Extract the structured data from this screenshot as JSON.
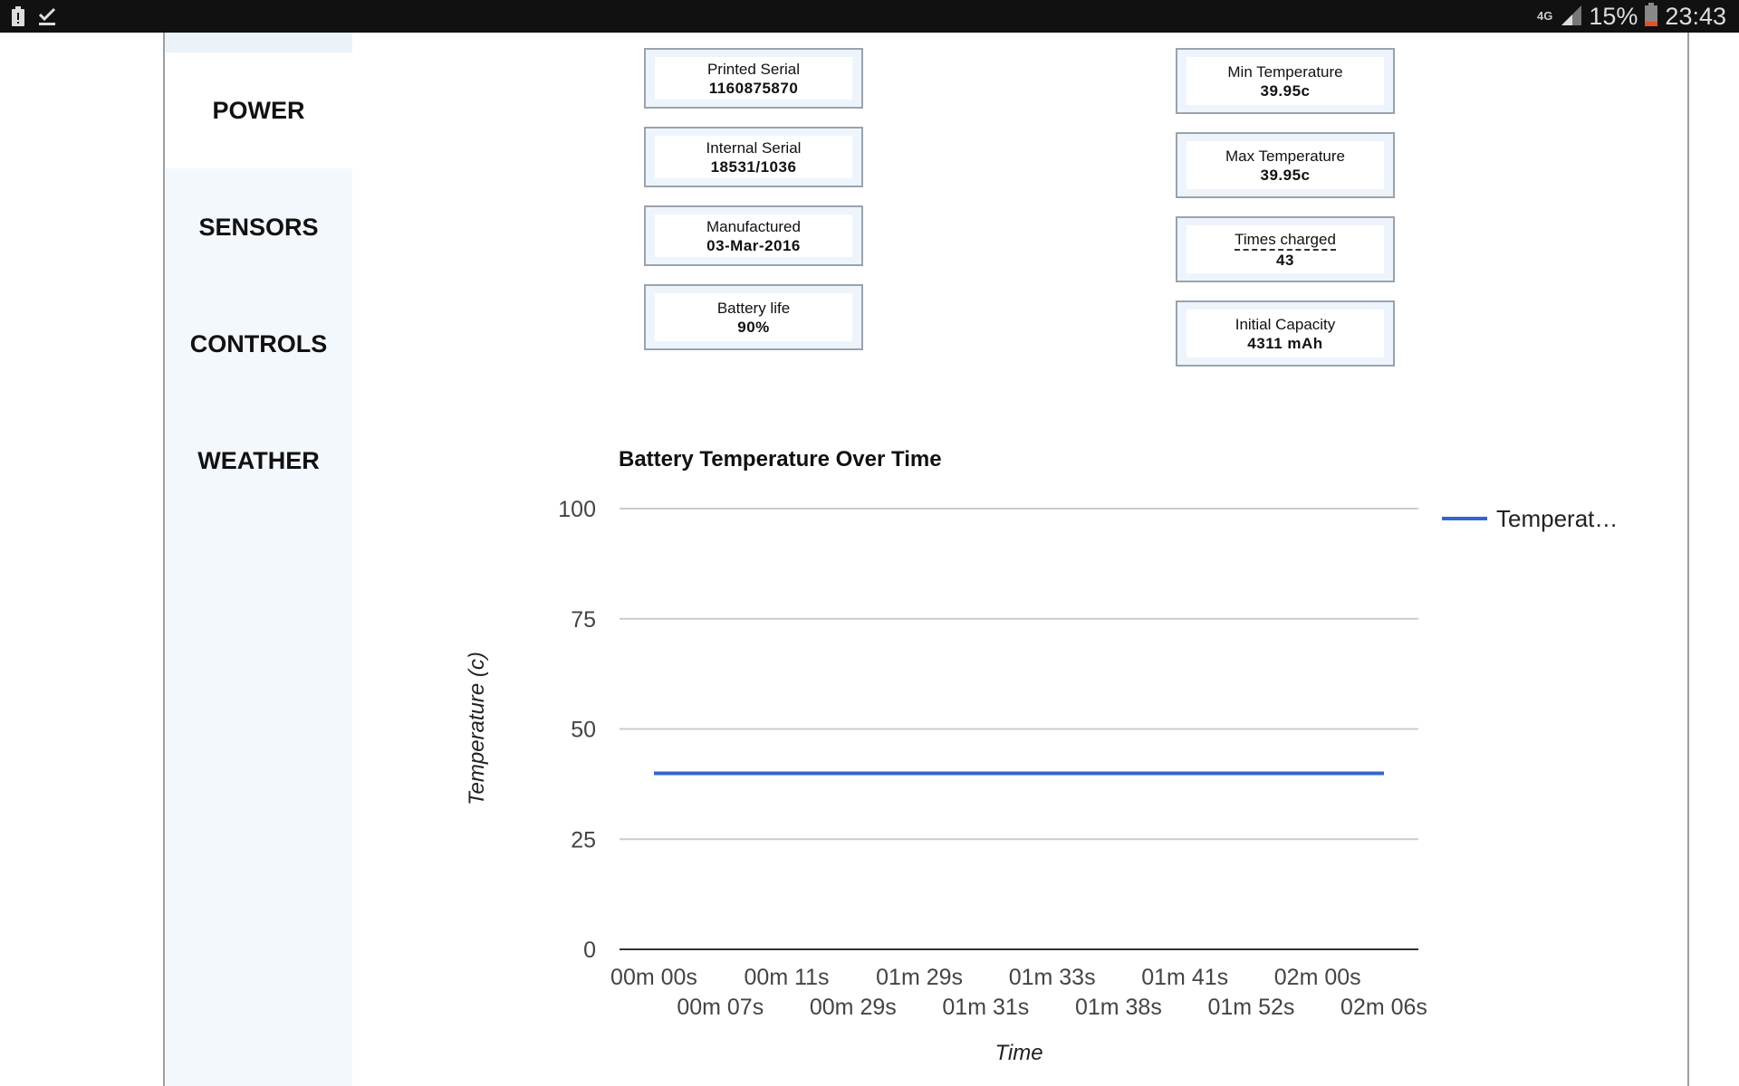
{
  "status_bar": {
    "network": "4G",
    "battery_percent": "15%",
    "time": "23:43",
    "icons": [
      "battery-alert-icon",
      "check-icon",
      "signal-icon",
      "battery-icon"
    ]
  },
  "sidebar": {
    "items": [
      {
        "label": "POWER",
        "active": true
      },
      {
        "label": "SENSORS",
        "active": false
      },
      {
        "label": "CONTROLS",
        "active": false
      },
      {
        "label": "WEATHER",
        "active": false
      }
    ]
  },
  "cards": {
    "left": [
      {
        "label": "Printed Serial",
        "value": "1160875870"
      },
      {
        "label": "Internal Serial",
        "value": "18531/1036"
      },
      {
        "label": "Manufactured",
        "value": "03-Mar-2016"
      },
      {
        "label": "Battery life",
        "value": "90%"
      }
    ],
    "right": [
      {
        "label": "Min Temperature",
        "value": "39.95c"
      },
      {
        "label": "Max Temperature",
        "value": "39.95c"
      },
      {
        "label": "Times charged",
        "value": "43"
      },
      {
        "label": "Initial Capacity",
        "value": "4311 mAh"
      }
    ]
  },
  "chart_data": {
    "type": "line",
    "title": "Battery Temperature Over Time",
    "xlabel": "Time",
    "ylabel": "Temperature (c)",
    "ylim": [
      0,
      100
    ],
    "yticks": [
      0,
      25,
      50,
      75,
      100
    ],
    "grid": true,
    "legend_position": "right",
    "x": [
      "00m 00s",
      "00m 07s",
      "00m 11s",
      "00m 29s",
      "01m 29s",
      "01m 31s",
      "01m 33s",
      "01m 38s",
      "01m 41s",
      "01m 52s",
      "02m 00s",
      "02m 06s"
    ],
    "series": [
      {
        "name": "Temperat…",
        "color": "#3366cc",
        "values": [
          39.95,
          39.95,
          39.95,
          39.95,
          39.95,
          39.95,
          39.95,
          39.95,
          39.95,
          39.95,
          39.95,
          39.95
        ]
      }
    ]
  }
}
